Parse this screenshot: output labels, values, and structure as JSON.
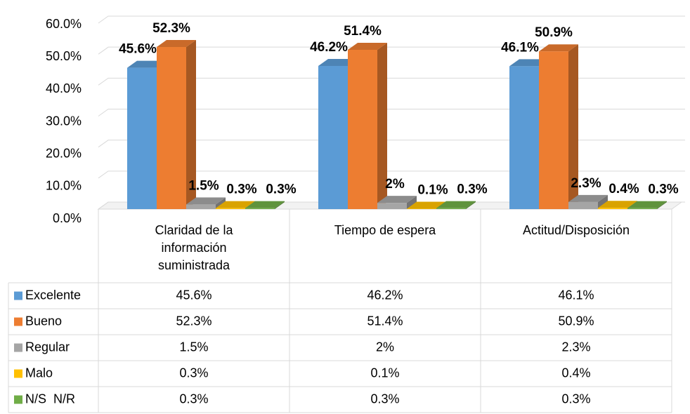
{
  "chart_data": {
    "type": "bar3d",
    "categories": [
      "Claridad de la información suministrada",
      "Tiempo de espera",
      "Actitud/Disposición"
    ],
    "series": [
      {
        "name": "Excelente",
        "color": "#5b9bd5",
        "values": [
          45.6,
          46.2,
          46.1
        ],
        "value_labels": [
          "45.6%",
          "46.2%",
          "46.1%"
        ]
      },
      {
        "name": "Bueno",
        "color": "#ed7d31",
        "values": [
          52.3,
          51.4,
          50.9
        ],
        "value_labels": [
          "52.3%",
          "51.4%",
          "50.9%"
        ]
      },
      {
        "name": "Regular",
        "color": "#a5a5a5",
        "values": [
          1.5,
          2,
          2.3
        ],
        "value_labels": [
          "1.5%",
          "2%",
          "2.3%"
        ]
      },
      {
        "name": "Malo",
        "color": "#ffc000",
        "values": [
          0.3,
          0.1,
          0.4
        ],
        "value_labels": [
          "0.3%",
          "0.1%",
          "0.4%"
        ]
      },
      {
        "name": "N/S  N/R",
        "color": "#70ad47",
        "values": [
          0.3,
          0.3,
          0.3
        ],
        "value_labels": [
          "0.3%",
          "0.3%",
          "0.3%"
        ]
      }
    ],
    "ylim": [
      0,
      60
    ],
    "yticks": [
      {
        "value": 0,
        "label": "0.0%"
      },
      {
        "value": 10,
        "label": "10.0%"
      },
      {
        "value": 20,
        "label": "20.0%"
      },
      {
        "value": 30,
        "label": "30.0%"
      },
      {
        "value": 40,
        "label": "40.0%"
      },
      {
        "value": 50,
        "label": "50.0%"
      },
      {
        "value": 60,
        "label": "60.0%"
      }
    ],
    "grid": true,
    "data_table": true
  }
}
